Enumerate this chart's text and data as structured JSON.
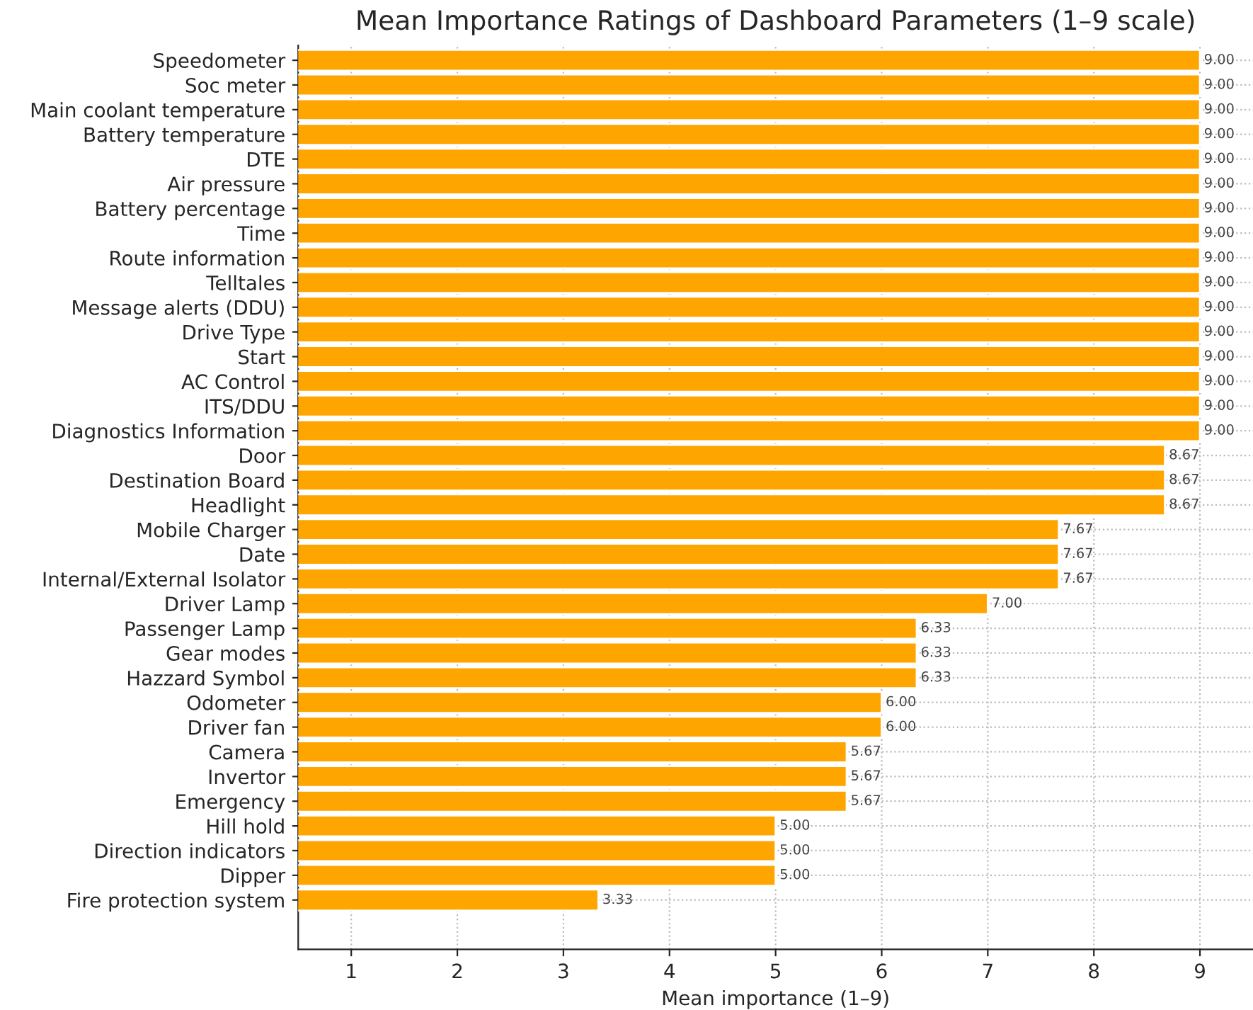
{
  "chart_data": {
    "type": "bar",
    "orientation": "horizontal",
    "title": "Mean Importance Ratings of Dashboard Parameters (1–9 scale)",
    "xlabel": "Mean importance (1–9)",
    "categories": [
      "Speedometer",
      "Soc meter",
      "Main coolant temperature",
      "Battery temperature",
      "DTE",
      "Air pressure",
      "Battery percentage",
      "Time",
      "Route information",
      "Telltales",
      "Message alerts (DDU)",
      "Drive Type",
      "Start",
      "AC Control",
      "ITS/DDU",
      "Diagnostics Information",
      "Door",
      "Destination Board",
      "Headlight",
      "Mobile Charger",
      "Date",
      "Internal/External Isolator",
      "Driver Lamp",
      "Passenger Lamp",
      "Gear modes",
      "Hazzard Symbol",
      "Odometer",
      "Driver fan",
      "Camera",
      "Invertor",
      "Emergency",
      "Hill hold",
      "Direction indicators",
      "Dipper",
      "Fire protection system"
    ],
    "values": [
      9,
      9,
      9,
      9,
      9,
      9,
      9,
      9,
      9,
      9,
      9,
      9,
      9,
      9,
      9,
      9,
      8.67,
      8.67,
      8.67,
      7.67,
      7.67,
      7.67,
      7,
      6.33,
      6.33,
      6.33,
      6,
      6,
      5.67,
      5.67,
      5.67,
      5,
      5,
      5,
      3.33
    ],
    "value_labels": [
      "9.00",
      "9.00",
      "9.00",
      "9.00",
      "9.00",
      "9.00",
      "9.00",
      "9.00",
      "9.00",
      "9.00",
      "9.00",
      "9.00",
      "9.00",
      "9.00",
      "9.00",
      "9.00",
      "8.67",
      "8.67",
      "8.67",
      "7.67",
      "7.67",
      "7.67",
      "7.00",
      "6.33",
      "6.33",
      "6.33",
      "6.00",
      "6.00",
      "5.67",
      "5.67",
      "5.67",
      "5.00",
      "5.00",
      "5.00",
      "3.33"
    ],
    "color": "#ffa500",
    "xlim": [
      0.5,
      9.5
    ],
    "xticks": [
      1,
      2,
      3,
      4,
      5,
      6,
      7,
      8,
      9
    ],
    "grid": true
  }
}
